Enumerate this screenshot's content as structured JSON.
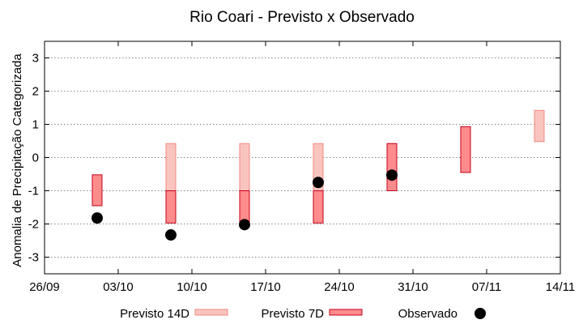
{
  "chart_data": {
    "type": "range-bar-with-points",
    "title": "Rio Coari - Previsto x Observado",
    "ylabel": "Anomalia de Precipitação Categorizada",
    "xlabel": "",
    "ylim": [
      -3.5,
      3.5
    ],
    "yticks": [
      -3,
      -2,
      -1,
      0,
      1,
      2,
      3
    ],
    "xlim": [
      "2022-09-26",
      "2022-11-14"
    ],
    "xticks": [
      "26/09",
      "03/10",
      "10/10",
      "17/10",
      "24/10",
      "31/10",
      "07/11",
      "14/11"
    ],
    "grid": "horizontal dotted",
    "legend_position": "bottom",
    "series": [
      {
        "name": "Previsto 14D",
        "color": "#f9c4be",
        "edge": "#f08a80",
        "ranges": [
          {
            "date": "2022-10-08",
            "low": -1.0,
            "high": 0.42
          },
          {
            "date": "2022-10-15",
            "low": -1.0,
            "high": 0.42
          },
          {
            "date": "2022-10-22",
            "low": -1.0,
            "high": 0.42
          },
          {
            "date": "2022-10-29",
            "low": -0.97,
            "high": 0.42
          },
          {
            "date": "2022-11-12",
            "low": 0.48,
            "high": 1.42
          }
        ]
      },
      {
        "name": "Previsto 7D",
        "color": "#ff8c8c",
        "edge": "#c0001a",
        "ranges": [
          {
            "date": "2022-10-01",
            "low": -1.45,
            "high": -0.52
          },
          {
            "date": "2022-10-08",
            "low": -1.97,
            "high": -1.0
          },
          {
            "date": "2022-10-15",
            "low": -1.97,
            "high": -1.0
          },
          {
            "date": "2022-10-22",
            "low": -1.97,
            "high": -1.0
          },
          {
            "date": "2022-10-29",
            "low": -1.0,
            "high": 0.42
          },
          {
            "date": "2022-11-05",
            "low": -0.45,
            "high": 0.93
          }
        ]
      },
      {
        "name": "Observado",
        "color": "#000000",
        "points": [
          {
            "date": "2022-10-01",
            "value": -1.82
          },
          {
            "date": "2022-10-08",
            "value": -2.33
          },
          {
            "date": "2022-10-15",
            "value": -2.02
          },
          {
            "date": "2022-10-22",
            "value": -0.75
          },
          {
            "date": "2022-10-29",
            "value": -0.53
          }
        ]
      }
    ]
  }
}
